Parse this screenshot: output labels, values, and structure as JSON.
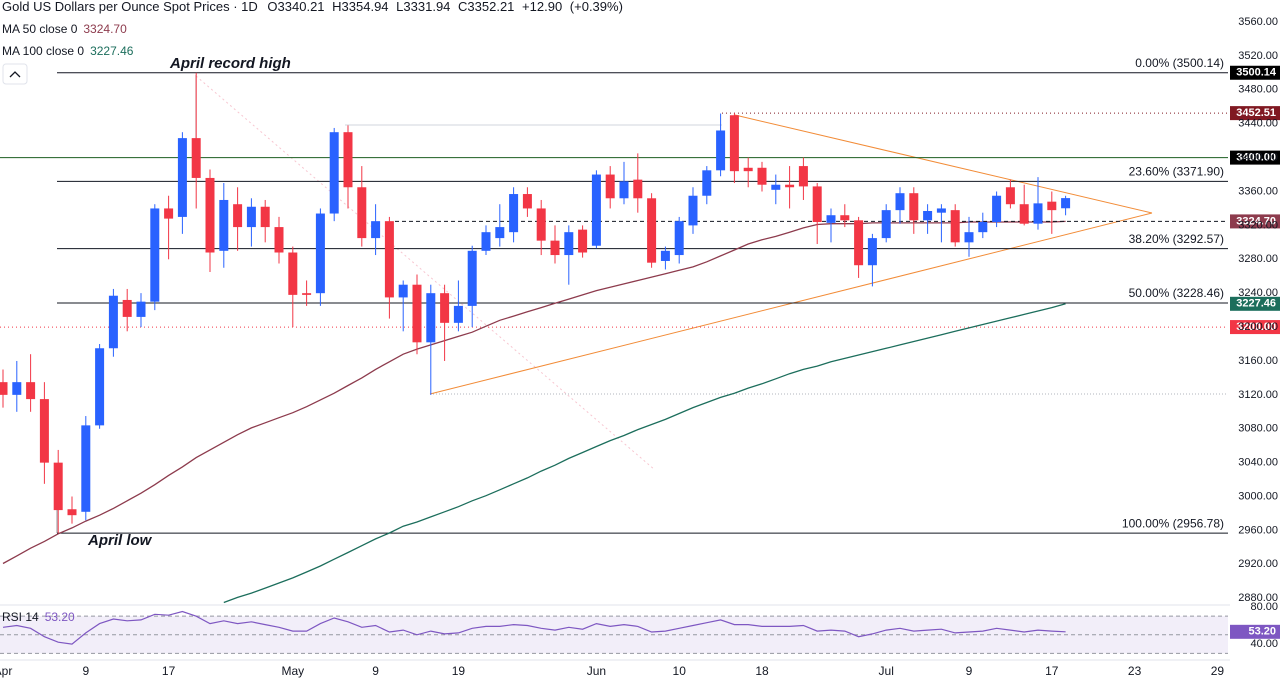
{
  "header": {
    "title": "Gold US Dollars per Ounce Spot Prices · 1D",
    "ohlc_letters": [
      "O",
      "H",
      "L",
      "C"
    ],
    "change": {
      "value": 12.9,
      "label": "+12.90"
    },
    "change_pct": {
      "value": 0.39,
      "label": "(+0.39%)"
    }
  },
  "chart_data": {
    "type": "candlestick",
    "categories": [
      "Apr",
      null,
      null,
      null,
      null,
      null,
      "9",
      null,
      null,
      null,
      null,
      null,
      "17",
      null,
      null,
      null,
      null,
      null,
      null,
      null,
      null,
      "May",
      null,
      null,
      null,
      null,
      null,
      "9",
      null,
      null,
      null,
      null,
      null,
      "19",
      null,
      null,
      null,
      null,
      null,
      null,
      null,
      null,
      null,
      "Jun",
      null,
      null,
      null,
      null,
      null,
      "10",
      null,
      null,
      null,
      null,
      null,
      "18",
      null,
      null,
      null,
      null,
      null,
      null,
      null,
      null,
      "Jul",
      null,
      null,
      null,
      null,
      null,
      "9",
      null,
      null,
      null,
      null,
      null,
      "17",
      null,
      null,
      null,
      null,
      null,
      "23",
      null,
      null,
      null,
      null,
      null,
      "29",
      null,
      null
    ],
    "open": [
      3135,
      3120,
      3135,
      3115,
      3040,
      2985,
      2982,
      3084,
      3175,
      3232,
      3212,
      3230,
      3340,
      3330,
      3423,
      3376,
      3290,
      3345,
      3318,
      3342,
      3318,
      3288,
      3240,
      3240,
      3334,
      3430,
      3365,
      3305,
      3325,
      3235,
      3250,
      3182,
      3240,
      3205,
      3225,
      3290,
      3305,
      3312,
      3357,
      3340,
      3302,
      3285,
      3315,
      3296,
      3380,
      3352,
      3374,
      3352,
      3278,
      3285,
      3320,
      3355,
      3385,
      3450,
      3388,
      3388,
      3362,
      3368,
      3390,
      3366,
      3323,
      3332,
      3326,
      3273,
      3305,
      3338,
      3358,
      3326,
      3335,
      3338,
      3300,
      3312,
      3324,
      3365,
      3345,
      3322,
      3348,
      3340.21,
      null,
      null,
      null,
      null,
      null,
      null,
      null,
      null,
      null,
      null,
      null,
      null,
      null
    ],
    "high": [
      3150,
      3160,
      3168,
      3135,
      3055,
      3000,
      3095,
      3180,
      3245,
      3245,
      3240,
      3345,
      3355,
      3430,
      3500,
      3386,
      3370,
      3365,
      3352,
      3350,
      3330,
      3295,
      3255,
      3340,
      3435,
      3438,
      3390,
      3345,
      3330,
      3255,
      3262,
      3250,
      3250,
      3255,
      3296,
      3320,
      3345,
      3365,
      3365,
      3350,
      3320,
      3320,
      3320,
      3385,
      3390,
      3395,
      3405,
      3358,
      3295,
      3330,
      3365,
      3390,
      3452,
      3452.51,
      3400,
      3395,
      3380,
      3390,
      3400,
      3370,
      3340,
      3345,
      3330,
      3310,
      3345,
      3365,
      3365,
      3345,
      3345,
      3345,
      3330,
      3335,
      3360,
      3374,
      3368,
      3377,
      3360,
      3354.94,
      null,
      null,
      null,
      null,
      null,
      null,
      null,
      null,
      null,
      null,
      null,
      null,
      null
    ],
    "low": [
      3105,
      3100,
      3100,
      3015,
      2957,
      2968,
      2972,
      3080,
      3165,
      3195,
      3200,
      3220,
      3280,
      3310,
      3340,
      3265,
      3270,
      3290,
      3295,
      3300,
      3275,
      3200,
      3225,
      3225,
      3325,
      3340,
      3295,
      3285,
      3210,
      3195,
      3168,
      3120,
      3160,
      3195,
      3200,
      3285,
      3295,
      3300,
      3330,
      3285,
      3275,
      3250,
      3282,
      3293,
      3340,
      3345,
      3335,
      3270,
      3268,
      3275,
      3310,
      3345,
      3378,
      3370,
      3365,
      3360,
      3345,
      3340,
      3350,
      3298,
      3300,
      3318,
      3258,
      3248,
      3300,
      3322,
      3310,
      3310,
      3300,
      3295,
      3283,
      3305,
      3318,
      3340,
      3320,
      3315,
      3310,
      3331.94,
      null,
      null,
      null,
      null,
      null,
      null,
      null,
      null,
      null,
      null,
      null,
      null,
      null
    ],
    "close": [
      3120,
      3135,
      3115,
      3040,
      2984,
      2978,
      3084,
      3175,
      3237,
      3212,
      3230,
      3340,
      3328,
      3423,
      3376,
      3288,
      3350,
      3318,
      3342,
      3318,
      3288,
      3238,
      3238,
      3334,
      3430,
      3365,
      3305,
      3325,
      3235,
      3250,
      3182,
      3240,
      3205,
      3225,
      3290,
      3312,
      3318,
      3357,
      3340,
      3302,
      3285,
      3312,
      3288,
      3380,
      3352,
      3372,
      3352,
      3276,
      3290,
      3325,
      3355,
      3385,
      3432,
      3384,
      3384,
      3368,
      3368,
      3365,
      3366,
      3324,
      3332,
      3326,
      3273,
      3305,
      3338,
      3358,
      3326,
      3337,
      3340,
      3300,
      3312,
      3324,
      3355,
      3345,
      3322,
      3346,
      3338,
      3352.21,
      null,
      null,
      null,
      null,
      null,
      null,
      null,
      null,
      null,
      null,
      null,
      null,
      null
    ],
    "up_color": "#2962ff",
    "down_color": "#f23645",
    "ylim": [
      2872,
      3586
    ],
    "yticks": [
      {
        "value": 2880,
        "label": "2880.00"
      },
      {
        "value": 2920,
        "label": "2920.00"
      },
      {
        "value": 2960,
        "label": "2960.00"
      },
      {
        "value": 3000,
        "label": "3000.00"
      },
      {
        "value": 3040,
        "label": "3040.00"
      },
      {
        "value": 3080,
        "label": "3080.00"
      },
      {
        "value": 3120,
        "label": "3120.00"
      },
      {
        "value": 3160,
        "label": "3160.00"
      },
      {
        "value": 3200,
        "label": "3200.00"
      },
      {
        "value": 3240,
        "label": "3240.00"
      },
      {
        "value": 3280,
        "label": "3280.00"
      },
      {
        "value": 3320,
        "label": "3320.00"
      },
      {
        "value": 3360,
        "label": "3360.00"
      },
      {
        "value": 3400,
        "label": "3400.00"
      },
      {
        "value": 3440,
        "label": "3440.00"
      },
      {
        "value": 3480,
        "label": "3480.00"
      },
      {
        "value": 3520,
        "label": "3520.00"
      },
      {
        "value": 3560,
        "label": "3560.00"
      }
    ],
    "series": [
      {
        "name": "MA 50 close 0",
        "color": "#8d3b4d",
        "value_label": "3324.70",
        "price_line": true,
        "values": [
          2921,
          2930,
          2939,
          2947,
          2956,
          2963,
          2971,
          2978,
          2986,
          2995,
          3004,
          3014,
          3025,
          3035,
          3046,
          3055,
          3064,
          3073,
          3081,
          3087,
          3093,
          3099,
          3106,
          3114,
          3122,
          3131,
          3140,
          3150,
          3159,
          3168,
          3174,
          3179,
          3184,
          3189,
          3194,
          3201,
          3208,
          3213,
          3218,
          3223,
          3228,
          3233,
          3238,
          3243,
          3247,
          3251,
          3255,
          3259,
          3263,
          3267,
          3271,
          3277,
          3284,
          3291,
          3298,
          3303,
          3307,
          3312,
          3317,
          3321,
          3322,
          3322,
          3322,
          3323,
          3323,
          3323,
          3323,
          3323,
          3323,
          3323,
          3324,
          3324,
          3324,
          3324,
          3324,
          3324,
          3324,
          3324.7,
          null,
          null,
          null,
          null,
          null,
          null,
          null,
          null,
          null,
          null,
          null,
          null,
          null
        ]
      },
      {
        "name": "MA 100 close 0",
        "color": "#1c6e5c",
        "value_label": "3227.46",
        "price_line": false,
        "values": [
          null,
          null,
          null,
          null,
          null,
          null,
          null,
          null,
          null,
          null,
          null,
          null,
          null,
          null,
          null,
          null,
          2875,
          2881,
          2886,
          2892,
          2898,
          2904,
          2911,
          2918,
          2926,
          2934,
          2942,
          2950,
          2957,
          2965,
          2970,
          2976,
          2982,
          2988,
          2995,
          3001,
          3008,
          3015,
          3022,
          3030,
          3037,
          3045,
          3052,
          3059,
          3066,
          3072,
          3079,
          3085,
          3091,
          3098,
          3105,
          3111,
          3117,
          3122,
          3128,
          3133,
          3139,
          3145,
          3150,
          3154,
          3159,
          3163,
          3167,
          3171,
          3175,
          3179,
          3183,
          3187,
          3191,
          3195,
          3199,
          3203,
          3207,
          3211,
          3215,
          3219,
          3223,
          3227.46,
          null,
          null,
          null,
          null,
          null,
          null,
          null,
          null,
          null,
          null,
          null,
          null,
          null
        ]
      }
    ],
    "fib_levels": [
      {
        "label": "0.00% (3500.14)",
        "value": 3500.14,
        "badge_color": "#000000"
      },
      {
        "label": "23.60% (3371.90)",
        "value": 3371.9
      },
      {
        "label": "38.20% (3292.57)",
        "value": 3292.57
      },
      {
        "label": "50.00% (3228.46)",
        "value": 3228.46
      },
      {
        "label": "100.00% (2956.78)",
        "value": 2956.78
      }
    ],
    "lines": [
      {
        "value": 3452.51,
        "color": "#801922",
        "style": "dotted",
        "badge_color": "#801922"
      },
      {
        "value": 3400,
        "label": "3400.00",
        "color": "#1b5e20",
        "style": "solid",
        "badge_color": "#000000"
      },
      {
        "value": 3200,
        "label": "3200.00",
        "color": "#f23645",
        "style": "dotted",
        "badge_color": "#f23645"
      }
    ],
    "annotations": [
      "April record high",
      "April low"
    ],
    "rsi": {
      "name": "RSI 14",
      "color": "#7e57c2",
      "value_label": "53.20",
      "ylim": [
        24,
        82
      ],
      "yticks": [
        {
          "value": 40,
          "label": "40.00"
        },
        {
          "value": 80,
          "label": "80.00"
        }
      ],
      "levels": [
        70,
        50,
        30
      ],
      "values": [
        58,
        60,
        57,
        48,
        42,
        40,
        52,
        62,
        67,
        65,
        66,
        72,
        71,
        75,
        70,
        62,
        65,
        62,
        64,
        61,
        58,
        54,
        54,
        62,
        68,
        64,
        58,
        60,
        53,
        55,
        50,
        54,
        51,
        52,
        57,
        59,
        59,
        61,
        60,
        57,
        55,
        58,
        56,
        62,
        59,
        61,
        59,
        53,
        54,
        57,
        60,
        63,
        66,
        61,
        61,
        59,
        59,
        59,
        60,
        54,
        55,
        54,
        48,
        51,
        55,
        57,
        54,
        55,
        56,
        52,
        53,
        54,
        57,
        55,
        53,
        55,
        54,
        53.2,
        null,
        null,
        null,
        null,
        null,
        null,
        null,
        null,
        null,
        null,
        null,
        null,
        null
      ]
    }
  }
}
